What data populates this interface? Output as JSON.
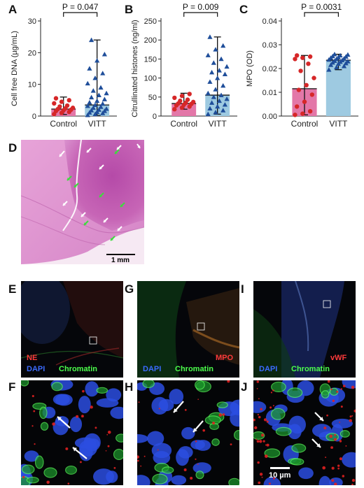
{
  "panel_letters": [
    "A",
    "B",
    "C",
    "D",
    "E",
    "F",
    "G",
    "H",
    "I",
    "J"
  ],
  "chart_data": [
    {
      "panel": "A",
      "type": "bar",
      "categories": [
        "Control",
        "VITT"
      ],
      "ylabel": "Cell free DNA (µg/mL)",
      "ylim": [
        0,
        30
      ],
      "yticks": [
        0,
        10,
        20,
        30
      ],
      "pvalue": "P = 0.047",
      "bars": [
        {
          "median": 2.2,
          "range": [
            0.5,
            6
          ],
          "color": "#e377a8",
          "marker": "circle",
          "marker_color": "#d62728"
        },
        {
          "median": 3.5,
          "range": [
            0.2,
            24
          ],
          "color": "#9ecae1",
          "marker": "triangle",
          "marker_color": "#1f4e9a"
        }
      ],
      "points": [
        [
          0.6,
          1.0,
          1.3,
          1.6,
          1.8,
          2.0,
          2.2,
          2.4,
          2.6,
          3.0,
          3.3,
          4.0,
          4.5,
          5.0,
          5.6
        ],
        [
          0.3,
          0.6,
          0.9,
          1.1,
          1.3,
          1.6,
          1.8,
          2.0,
          2.3,
          2.6,
          2.9,
          3.2,
          3.5,
          3.9,
          4.3,
          4.8,
          5.3,
          5.9,
          6.6,
          7.2,
          8.0,
          9.0,
          10.3,
          12.0,
          13.5,
          15.0,
          17.5,
          19.5,
          24.0
        ]
      ]
    },
    {
      "panel": "B",
      "type": "bar",
      "categories": [
        "Control",
        "VITT"
      ],
      "ylabel": "Citrullinated histones (ng/ml)",
      "ylim": [
        0,
        250
      ],
      "yticks": [
        0,
        50,
        100,
        150,
        200,
        250
      ],
      "pvalue": "P = 0.009",
      "bars": [
        {
          "median": 33,
          "range": [
            18,
            60
          ],
          "color": "#e377a8",
          "marker": "circle",
          "marker_color": "#d62728"
        },
        {
          "median": 55,
          "range": [
            5,
            208
          ],
          "color": "#9ecae1",
          "marker": "triangle",
          "marker_color": "#1f4e9a"
        }
      ],
      "points": [
        [
          18,
          22,
          25,
          28,
          30,
          32,
          33,
          35,
          37,
          40,
          43,
          48,
          53,
          58
        ],
        [
          5,
          10,
          15,
          20,
          25,
          30,
          35,
          40,
          45,
          50,
          55,
          60,
          70,
          80,
          90,
          100,
          110,
          115,
          120,
          130,
          140,
          150,
          160,
          175,
          185,
          208
        ]
      ]
    },
    {
      "panel": "C",
      "type": "bar",
      "categories": [
        "Control",
        "VITT"
      ],
      "ylabel": "MPO (OD)",
      "ylim": [
        0,
        0.04
      ],
      "yticks": [
        "0.00",
        "0.01",
        "0.02",
        "0.03",
        "0.04"
      ],
      "pvalue": "P = 0.0031",
      "bars": [
        {
          "median": 0.0115,
          "range": [
            0.0005,
            0.0255
          ],
          "color": "#e377a8",
          "marker": "circle",
          "marker_color": "#d62728"
        },
        {
          "median": 0.0235,
          "range": [
            0.0195,
            0.026
          ],
          "color": "#9ecae1",
          "marker": "triangle",
          "marker_color": "#1f4e9a"
        }
      ],
      "points": [
        [
          0.0005,
          0.001,
          0.002,
          0.004,
          0.006,
          0.009,
          0.011,
          0.013,
          0.016,
          0.019,
          0.022,
          0.024,
          0.0245,
          0.025,
          0.0255
        ],
        [
          0.0195,
          0.0205,
          0.021,
          0.0215,
          0.022,
          0.0222,
          0.0225,
          0.0228,
          0.023,
          0.0232,
          0.0235,
          0.0237,
          0.024,
          0.0242,
          0.0245,
          0.0247,
          0.025,
          0.0252,
          0.0255,
          0.0258,
          0.026
        ]
      ]
    }
  ],
  "he": {
    "scale_label": "1 mm",
    "white_arrows": 9,
    "green_arrows": 7
  },
  "fluorescence": {
    "E": {
      "labels": [
        {
          "text": "NE",
          "color": "#ff3b3b"
        },
        {
          "text": "DAPI",
          "color": "#3b6bff"
        },
        {
          "text": "Chromatin",
          "color": "#4cff4c"
        }
      ]
    },
    "G": {
      "labels": [
        {
          "text": "MPO",
          "color": "#ff3b3b"
        },
        {
          "text": "DAPI",
          "color": "#3b6bff"
        },
        {
          "text": "Chromatin",
          "color": "#4cff4c"
        }
      ]
    },
    "I": {
      "labels": [
        {
          "text": "vWF",
          "color": "#ff3b3b"
        },
        {
          "text": "DAPI",
          "color": "#3b6bff"
        },
        {
          "text": "Chromatin",
          "color": "#4cff4c"
        }
      ]
    },
    "J": {
      "scale_label": "10 µm"
    }
  }
}
